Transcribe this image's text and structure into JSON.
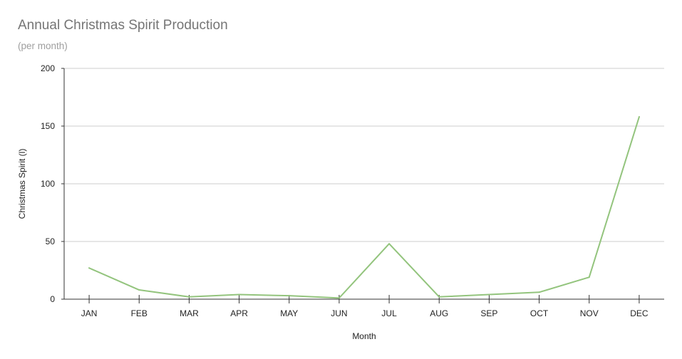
{
  "chart_data": {
    "type": "line",
    "title": "Annual Christmas Spirit Production",
    "subtitle": "(per month)",
    "xlabel": "Month",
    "ylabel": "Christmas Spirit (l)",
    "categories": [
      "JAN",
      "FEB",
      "MAR",
      "APR",
      "MAY",
      "JUN",
      "JUL",
      "AUG",
      "SEP",
      "OCT",
      "NOV",
      "DEC"
    ],
    "series": [
      {
        "values": [
          27,
          8,
          2,
          4,
          3,
          1,
          48,
          2,
          4,
          6,
          19,
          158
        ],
        "color": "#93c47d"
      }
    ],
    "ylim": [
      0,
      200
    ],
    "yticks": [
      0,
      50,
      100,
      150,
      200
    ],
    "grid": true,
    "legend": "none"
  }
}
